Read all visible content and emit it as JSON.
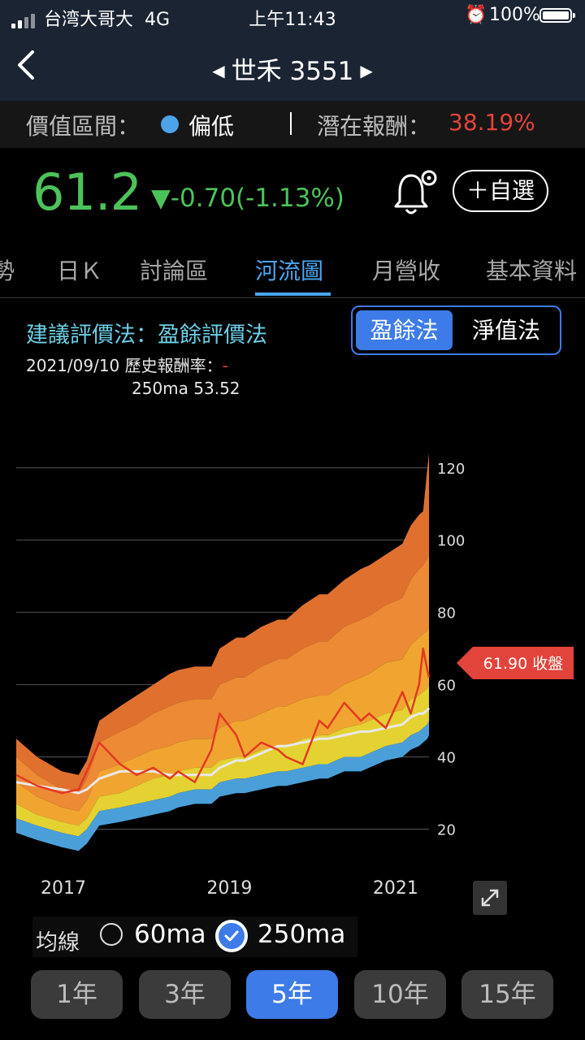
{
  "status": {
    "carrier": "台湾大哥大",
    "network": "4G",
    "time": "上午11:43",
    "battery": "100%",
    "icons": [
      "signal-icon",
      "alarm-icon",
      "battery-icon"
    ]
  },
  "nav": {
    "title": "世禾 3551",
    "icons": [
      "back-chevron-icon",
      "prev-arrow-icon",
      "next-arrow-icon"
    ]
  },
  "valuation": {
    "label": "價值區間：",
    "value": "偏低",
    "reward_label": "潛在報酬：",
    "reward": "38.19%"
  },
  "quote": {
    "price": "61.2",
    "change": "▼-0.70(-1.13%)",
    "watchlist_label": "＋自選"
  },
  "tabs": [
    {
      "label": "勢"
    },
    {
      "label": "日Ｋ"
    },
    {
      "label": "討論區"
    },
    {
      "label": "河流圖",
      "active": true
    },
    {
      "label": "月營收"
    },
    {
      "label": "基本資料"
    }
  ],
  "method": {
    "title": "建議評價法：盈餘評價法",
    "options": [
      {
        "label": "盈餘法",
        "selected": true
      },
      {
        "label": "淨值法",
        "selected": false
      }
    ]
  },
  "info": {
    "date": "2021/09/10",
    "label": "歷史報酬率：",
    "value": "-",
    "ma": "250ma 53.52"
  },
  "chart_data": {
    "type": "area",
    "x_ticks": [
      "2017",
      "2019",
      "2021"
    ],
    "y_ticks": [
      20,
      40,
      60,
      80,
      100,
      120
    ],
    "ylim": [
      10,
      124
    ],
    "grid": true,
    "tag": "61.90 收盤",
    "tag_value": 66,
    "band_colors": [
      "#4a9fd8",
      "#e3d232",
      "#f0a530",
      "#ec8a35",
      "#e0702e"
    ],
    "close_color": "#e23a22",
    "ma_color": "#e8e8e8",
    "x": [
      2016.55,
      2016.8,
      2017.1,
      2017.3,
      2017.4,
      2017.55,
      2017.8,
      2018.0,
      2018.2,
      2018.4,
      2018.5,
      2018.7,
      2018.9,
      2019.0,
      2019.2,
      2019.3,
      2019.5,
      2019.7,
      2019.8,
      2020.0,
      2020.2,
      2020.3,
      2020.5,
      2020.7,
      2020.8,
      2021.0,
      2021.2,
      2021.3,
      2021.4,
      2021.45,
      2021.5,
      2021.52
    ],
    "bands": [
      [
        23,
        21,
        19,
        18,
        20,
        25,
        26,
        27,
        28,
        29,
        30,
        31,
        31,
        33,
        34,
        34,
        35,
        36,
        36,
        37,
        38,
        38,
        40,
        40,
        41,
        43,
        44,
        46,
        47,
        48,
        49,
        50
      ],
      [
        27,
        24,
        22,
        21,
        23,
        29,
        30,
        32,
        34,
        35,
        36,
        37,
        37,
        39,
        40,
        40,
        42,
        43,
        43,
        45,
        46,
        46,
        48,
        49,
        50,
        52,
        53,
        56,
        57,
        58,
        59,
        60
      ],
      [
        33,
        29,
        26,
        25,
        28,
        36,
        38,
        40,
        42,
        43,
        44,
        45,
        45,
        48,
        50,
        50,
        52,
        54,
        54,
        56,
        57,
        57,
        60,
        62,
        63,
        66,
        67,
        71,
        73,
        74,
        75,
        76
      ],
      [
        40,
        35,
        31,
        30,
        34,
        44,
        47,
        49,
        52,
        54,
        55,
        56,
        56,
        60,
        62,
        62,
        65,
        67,
        67,
        70,
        72,
        72,
        76,
        78,
        79,
        82,
        84,
        89,
        92,
        93,
        95,
        96
      ],
      [
        45,
        40,
        36,
        35,
        39,
        50,
        54,
        57,
        60,
        63,
        64,
        65,
        65,
        70,
        73,
        73,
        76,
        78,
        78,
        82,
        85,
        85,
        89,
        92,
        93,
        96,
        99,
        104,
        107,
        108,
        120,
        124
      ]
    ],
    "close": [
      35,
      32,
      30,
      31,
      36,
      44,
      38,
      35,
      37,
      34,
      36,
      33,
      42,
      52,
      46,
      40,
      44,
      42,
      40,
      38,
      50,
      48,
      55,
      50,
      52,
      48,
      58,
      52,
      60,
      70,
      64,
      62
    ],
    "ma250": [
      33,
      32,
      31,
      30,
      31,
      34,
      36,
      36,
      36,
      35,
      35,
      35,
      35,
      37,
      39,
      39,
      41,
      43,
      43,
      44,
      45,
      45,
      46,
      47,
      47,
      48,
      49,
      51,
      52,
      52,
      53,
      53.5
    ]
  },
  "ma_toggle": {
    "label": "均線",
    "options": [
      {
        "label": "60ma",
        "checked": false
      },
      {
        "label": "250ma",
        "checked": true
      }
    ]
  },
  "periods": [
    {
      "label": "1年"
    },
    {
      "label": "3年"
    },
    {
      "label": "5年",
      "active": true
    },
    {
      "label": "10年"
    },
    {
      "label": "15年"
    }
  ],
  "colors": {
    "up_down_green": "#4cc35a",
    "negative_red": "#e2433a",
    "accent_blue": "#3d7be8",
    "title_cyan": "#6cd0e6"
  }
}
